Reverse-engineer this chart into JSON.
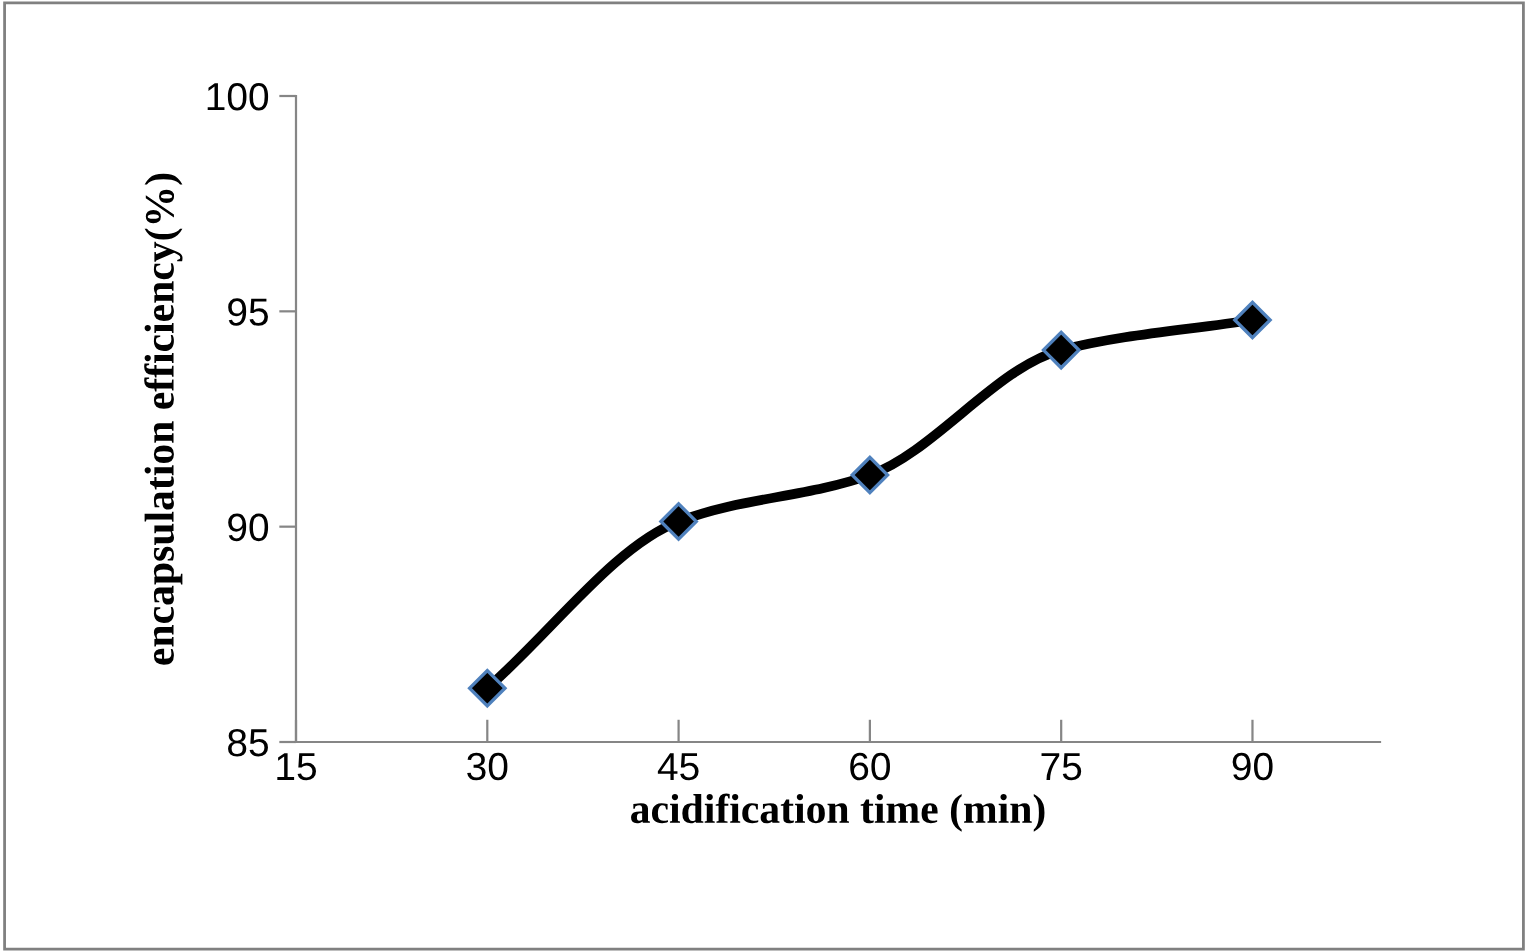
{
  "chart_data": {
    "type": "line",
    "xlabel": "acidification time (min)",
    "ylabel": "encapsulation efficiency(%)",
    "x": [
      30,
      45,
      60,
      75,
      90
    ],
    "series": [
      {
        "color": "#000000",
        "values": [
          86.25,
          90.12,
          91.2,
          94.1,
          94.8
        ]
      }
    ],
    "xlim": [
      15,
      100
    ],
    "xticks": [
      15,
      30,
      45,
      60,
      75,
      90
    ],
    "ylim": [
      85,
      100
    ],
    "yticks": [
      85,
      90,
      95,
      100
    ],
    "marker": "diamond",
    "line_style": "solid",
    "grid": false,
    "legend": false
  }
}
